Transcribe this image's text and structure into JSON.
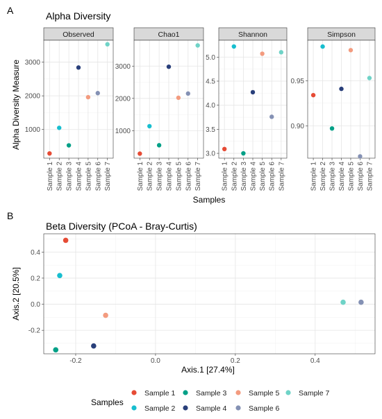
{
  "figure_a": {
    "panel_label": "A",
    "title": "Alpha Diversity",
    "ylabel": "Alpha Diversity Measure",
    "xlabel": "Samples"
  },
  "figure_b": {
    "panel_label": "B",
    "title": "Beta Diversity (PCoA - Bray-Curtis)"
  },
  "legend": {
    "title": "Samples",
    "placement": "bottom",
    "items": [
      {
        "label": "Sample 1",
        "color": "#E64B35"
      },
      {
        "label": "Sample 2",
        "color": "#17BECF"
      },
      {
        "label": "Sample 3",
        "color": "#00A087"
      },
      {
        "label": "Sample 4",
        "color": "#293F7A"
      },
      {
        "label": "Sample 5",
        "color": "#F39B7F"
      },
      {
        "label": "Sample 6",
        "color": "#8491B4"
      },
      {
        "label": "Sample 7",
        "color": "#6FD3C7"
      }
    ]
  },
  "chart_data": [
    {
      "type": "scatter",
      "facet": "Observed",
      "categories": [
        "Sample 1",
        "Sample 2",
        "Sample 3",
        "Sample 4",
        "Sample 5",
        "Sample 6",
        "Sample 7"
      ],
      "values": [
        290,
        1050,
        530,
        2840,
        1960,
        2080,
        3530
      ],
      "ylim": [
        150,
        3650
      ],
      "yticks": [
        1000,
        2000,
        3000
      ],
      "grid": true
    },
    {
      "type": "scatter",
      "facet": "Chao1",
      "categories": [
        "Sample 1",
        "Sample 2",
        "Sample 3",
        "Sample 4",
        "Sample 5",
        "Sample 6",
        "Sample 7"
      ],
      "values": [
        290,
        1140,
        550,
        2980,
        2020,
        2150,
        3640
      ],
      "ylim": [
        150,
        3800
      ],
      "yticks": [
        1000,
        2000,
        3000
      ],
      "grid": true
    },
    {
      "type": "scatter",
      "facet": "Shannon",
      "categories": [
        "Sample 1",
        "Sample 2",
        "Sample 3",
        "Sample 4",
        "Sample 5",
        "Sample 6",
        "Sample 7"
      ],
      "values": [
        3.09,
        5.22,
        3.0,
        4.27,
        5.07,
        3.76,
        5.1
      ],
      "ylim": [
        2.9,
        5.35
      ],
      "yticks": [
        3.0,
        3.5,
        4.0,
        4.5,
        5.0
      ],
      "grid": true
    },
    {
      "type": "scatter",
      "facet": "Simpson",
      "categories": [
        "Sample 1",
        "Sample 2",
        "Sample 3",
        "Sample 4",
        "Sample 5",
        "Sample 6",
        "Sample 7"
      ],
      "values": [
        0.934,
        0.988,
        0.897,
        0.941,
        0.984,
        0.866,
        0.953
      ],
      "ylim": [
        0.864,
        0.995
      ],
      "yticks": [
        0.9,
        0.95
      ],
      "grid": true
    },
    {
      "type": "scatter",
      "xlabel": "Axis.1   [27.4%]",
      "ylabel": "Axis.2   [20.5%]",
      "xlim": [
        -0.28,
        0.55
      ],
      "ylim": [
        -0.38,
        0.54
      ],
      "xticks": [
        -0.2,
        0.0,
        0.2,
        0.4
      ],
      "xtick_labels": [
        "-0.2",
        "0.0",
        "0.2",
        "0.4"
      ],
      "yticks": [
        -0.2,
        0.0,
        0.2,
        0.4
      ],
      "ytick_labels": [
        "-0.2",
        "0.0",
        "0.2",
        "0.4"
      ],
      "grid": true,
      "points": [
        {
          "label": "Sample 1",
          "x": -0.225,
          "y": 0.49
        },
        {
          "label": "Sample 2",
          "x": -0.24,
          "y": 0.22
        },
        {
          "label": "Sample 3",
          "x": -0.25,
          "y": -0.35
        },
        {
          "label": "Sample 4",
          "x": -0.155,
          "y": -0.32
        },
        {
          "label": "Sample 5",
          "x": -0.125,
          "y": -0.085
        },
        {
          "label": "Sample 6",
          "x": 0.515,
          "y": 0.015
        },
        {
          "label": "Sample 7",
          "x": 0.47,
          "y": 0.015
        }
      ]
    }
  ]
}
